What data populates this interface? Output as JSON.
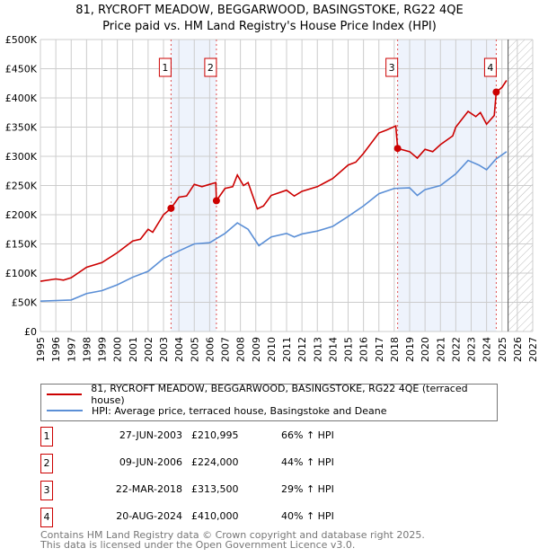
{
  "chart_data": {
    "type": "line",
    "title": "81, RYCROFT MEADOW, BEGGARWOOD, BASINGSTOKE, RG22 4QE",
    "subtitle": "Price paid vs. HM Land Registry's House Price Index (HPI)",
    "xlim": [
      1995,
      2027
    ],
    "ylim": [
      0,
      500000
    ],
    "yticks": [
      0,
      50000,
      100000,
      150000,
      200000,
      250000,
      300000,
      350000,
      400000,
      450000,
      500000
    ],
    "ytick_labels": [
      "£0",
      "£50K",
      "£100K",
      "£150K",
      "£200K",
      "£250K",
      "£300K",
      "£350K",
      "£400K",
      "£450K",
      "£500K"
    ],
    "xticks": [
      "1995",
      "1996",
      "1997",
      "1998",
      "1999",
      "2000",
      "2001",
      "2002",
      "2003",
      "2004",
      "2005",
      "2006",
      "2007",
      "2008",
      "2009",
      "2010",
      "2011",
      "2012",
      "2013",
      "2014",
      "2015",
      "2016",
      "2017",
      "2018",
      "2019",
      "2020",
      "2021",
      "2022",
      "2023",
      "2024",
      "2025",
      "2026",
      "2027"
    ],
    "forecast_from": 2025.4,
    "grid": true,
    "series": [
      {
        "name": "81, RYCROFT MEADOW, BEGGARWOOD, BASINGSTOKE, RG22 4QE (terraced house)",
        "color": "#cc0000",
        "x": [
          1995,
          1996,
          1996.5,
          1997,
          1998,
          1999,
          2000,
          2001,
          2001.5,
          2002,
          2002.3,
          2003,
          2003.49,
          2004,
          2004.5,
          2005,
          2005.5,
          2006,
          2006.4,
          2006.44,
          2007,
          2007.5,
          2007.8,
          2008.2,
          2008.5,
          2009.1,
          2009.5,
          2010,
          2011,
          2011.5,
          2012,
          2013,
          2013.5,
          2014,
          2015,
          2015.5,
          2016,
          2017,
          2017.5,
          2018.1,
          2018.22,
          2019,
          2019.5,
          2020,
          2020.5,
          2021,
          2021.8,
          2022,
          2022.8,
          2023.3,
          2023.6,
          2024,
          2024.5,
          2024.63,
          2025,
          2025.3
        ],
        "y": [
          86000,
          90000,
          88000,
          92000,
          110000,
          118000,
          135000,
          155000,
          158000,
          175000,
          170000,
          200000,
          210995,
          230000,
          232000,
          252000,
          248000,
          252000,
          255000,
          224000,
          245000,
          248000,
          268000,
          250000,
          255000,
          210000,
          215000,
          233000,
          242000,
          232000,
          240000,
          248000,
          255000,
          262000,
          285000,
          290000,
          305000,
          340000,
          345000,
          352000,
          313500,
          308000,
          297000,
          312000,
          308000,
          320000,
          335000,
          350000,
          377000,
          368000,
          375000,
          355000,
          370000,
          410000,
          418000,
          430000
        ]
      },
      {
        "name": "HPI: Average price, terraced house, Basingstoke and Deane",
        "color": "#5b8fd6",
        "x": [
          1995,
          1996,
          1997,
          1998,
          1999,
          2000,
          2001,
          2002,
          2003,
          2004,
          2005,
          2006,
          2007,
          2007.8,
          2008.5,
          2009.2,
          2010,
          2011,
          2011.5,
          2012,
          2013,
          2014,
          2015,
          2016,
          2017,
          2018,
          2019,
          2019.5,
          2020,
          2021,
          2022,
          2022.8,
          2023.5,
          2024,
          2024.6,
          2025.3
        ],
        "y": [
          52000,
          53000,
          54000,
          65000,
          70000,
          80000,
          93000,
          103000,
          125000,
          138000,
          150000,
          152000,
          168000,
          186000,
          175000,
          147000,
          162000,
          168000,
          162000,
          167000,
          172000,
          180000,
          197000,
          215000,
          236000,
          245000,
          246000,
          233000,
          243000,
          250000,
          270000,
          293000,
          285000,
          277000,
          295000,
          308000
        ]
      }
    ],
    "sales": [
      {
        "n": "1",
        "x": 2003.49,
        "date": "27-JUN-2003",
        "price": "£210,995",
        "value": 210995,
        "hpi": "66% ↑ HPI"
      },
      {
        "n": "2",
        "x": 2006.44,
        "date": "09-JUN-2006",
        "price": "£224,000",
        "value": 224000,
        "hpi": "44% ↑ HPI"
      },
      {
        "n": "3",
        "x": 2018.22,
        "date": "22-MAR-2018",
        "price": "£313,500",
        "value": 313500,
        "hpi": "29% ↑ HPI"
      },
      {
        "n": "4",
        "x": 2024.63,
        "date": "20-AUG-2024",
        "price": "£410,000",
        "value": 410000,
        "hpi": "40% ↑ HPI"
      }
    ]
  },
  "footer": {
    "line1": "Contains HM Land Registry data © Crown copyright and database right 2025.",
    "line2": "This data is licensed under the Open Government Licence v3.0."
  }
}
